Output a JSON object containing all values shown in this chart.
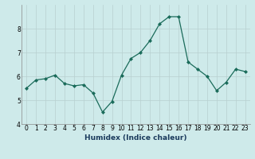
{
  "x": [
    0,
    1,
    2,
    3,
    4,
    5,
    6,
    7,
    8,
    9,
    10,
    11,
    12,
    13,
    14,
    15,
    16,
    17,
    18,
    19,
    20,
    21,
    22,
    23
  ],
  "y": [
    5.5,
    5.85,
    5.9,
    6.05,
    5.7,
    5.6,
    5.65,
    5.3,
    4.5,
    4.95,
    6.05,
    6.75,
    7.0,
    7.5,
    8.2,
    8.5,
    8.5,
    6.6,
    6.3,
    6.0,
    5.4,
    5.75,
    6.3,
    6.2
  ],
  "line_color": "#1a6b5a",
  "marker": "D",
  "marker_size": 2.0,
  "bg_color": "#ceeaea",
  "grid_color": "#b8d0d0",
  "xlabel": "Humidex (Indice chaleur)",
  "xlim": [
    -0.5,
    23.5
  ],
  "ylim": [
    4.0,
    9.0
  ],
  "yticks": [
    4,
    5,
    6,
    7,
    8
  ],
  "xticks": [
    0,
    1,
    2,
    3,
    4,
    5,
    6,
    7,
    8,
    9,
    10,
    11,
    12,
    13,
    14,
    15,
    16,
    17,
    18,
    19,
    20,
    21,
    22,
    23
  ],
  "xlabel_fontsize": 6.5,
  "xlabel_color": "#1a3a5c",
  "tick_fontsize": 5.5
}
